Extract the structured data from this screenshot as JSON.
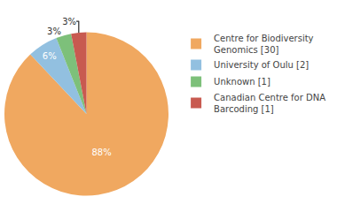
{
  "chart_data": {
    "type": "pie",
    "categories": [
      "Centre for Biodiversity\nGenomics [30]",
      "University of Oulu [2]",
      "Unknown [1]",
      "Canadian Centre for DNA\nBarcoding [1]"
    ],
    "values": [
      88,
      6,
      3,
      3
    ],
    "value_labels": [
      "88%",
      "6%",
      "3%",
      "3%"
    ],
    "colors": [
      "#F0A860",
      "#92C0E0",
      "#7DC07A",
      "#C85A50"
    ],
    "data_labels": true,
    "legend": "right"
  }
}
